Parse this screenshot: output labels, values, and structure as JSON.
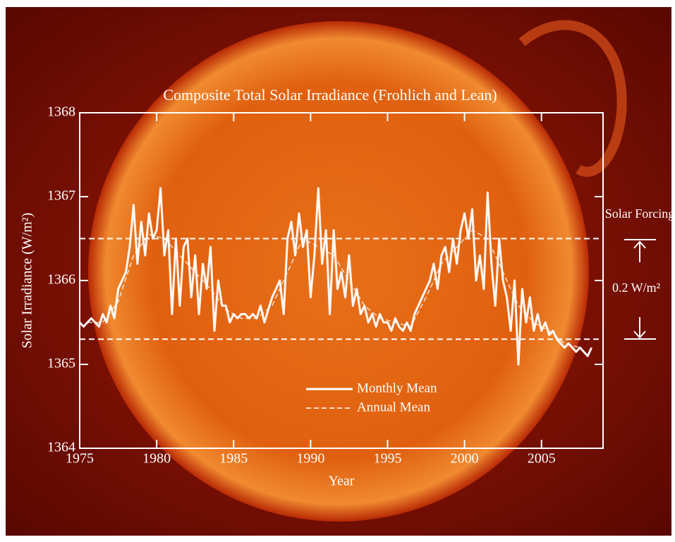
{
  "chart_data": {
    "type": "line",
    "title": "Composite Total Solar Irradiance (Frohlich and Lean)",
    "x_label": "Year",
    "y_label": "Solar Irradiance (W/m²)",
    "xlim": [
      1975,
      2009
    ],
    "xticks": [
      1975,
      1980,
      1985,
      1990,
      1995,
      2000,
      2005
    ],
    "ylim": [
      1364,
      1368
    ],
    "yticks": [
      1364,
      1365,
      1366,
      1367,
      1368
    ],
    "legend": "lower center",
    "reference_lines": [
      1366.5,
      1365.3
    ],
    "annotations": [
      "Solar Forcing",
      "0.2 W/m²"
    ],
    "series": [
      {
        "name": "Monthly Mean",
        "color": "#ffffff",
        "style": "solid",
        "x": [
          1975,
          1975.25,
          1975.5,
          1975.75,
          1976,
          1976.25,
          1976.5,
          1976.75,
          1977,
          1977.25,
          1977.5,
          1977.75,
          1978,
          1978.25,
          1978.5,
          1978.75,
          1979,
          1979.25,
          1979.5,
          1979.75,
          1980,
          1980.25,
          1980.5,
          1980.75,
          1981,
          1981.25,
          1981.5,
          1981.75,
          1982,
          1982.25,
          1982.5,
          1982.75,
          1983,
          1983.25,
          1983.5,
          1983.75,
          1984,
          1984.25,
          1984.5,
          1984.75,
          1985,
          1985.25,
          1985.5,
          1985.75,
          1986,
          1986.25,
          1986.5,
          1986.75,
          1987,
          1987.25,
          1987.5,
          1987.75,
          1988,
          1988.25,
          1988.5,
          1988.75,
          1989,
          1989.25,
          1989.5,
          1989.75,
          1990,
          1990.25,
          1990.5,
          1990.75,
          1991,
          1991.25,
          1991.5,
          1991.75,
          1992,
          1992.25,
          1992.5,
          1992.75,
          1993,
          1993.25,
          1993.5,
          1993.75,
          1994,
          1994.25,
          1994.5,
          1994.75,
          1995,
          1995.25,
          1995.5,
          1995.75,
          1996,
          1996.25,
          1996.5,
          1996.75,
          1997,
          1997.25,
          1997.5,
          1997.75,
          1998,
          1998.25,
          1998.5,
          1998.75,
          1999,
          1999.25,
          1999.5,
          1999.75,
          2000,
          2000.25,
          2000.5,
          2000.75,
          2001,
          2001.25,
          2001.5,
          2001.75,
          2002,
          2002.25,
          2002.5,
          2002.75,
          2003,
          2003.25,
          2003.5,
          2003.75,
          2004,
          2004.25,
          2004.5,
          2004.75,
          2005,
          2005.25,
          2005.5,
          2005.75,
          2006,
          2006.25,
          2006.5,
          2006.75,
          2007,
          2007.25,
          2007.5,
          2007.75,
          2008,
          2008.25
        ],
        "values": [
          1365.5,
          1365.45,
          1365.5,
          1365.55,
          1365.5,
          1365.45,
          1365.6,
          1365.5,
          1365.7,
          1365.55,
          1365.9,
          1366.0,
          1366.1,
          1366.4,
          1366.9,
          1366.2,
          1366.7,
          1366.3,
          1366.8,
          1366.5,
          1366.6,
          1367.1,
          1366.3,
          1366.6,
          1365.6,
          1366.5,
          1365.7,
          1366.4,
          1366.5,
          1365.8,
          1366.3,
          1365.6,
          1366.2,
          1365.9,
          1366.4,
          1365.4,
          1366.0,
          1365.7,
          1365.7,
          1365.5,
          1365.6,
          1365.55,
          1365.6,
          1365.6,
          1365.55,
          1365.6,
          1365.55,
          1365.7,
          1365.5,
          1365.65,
          1365.8,
          1365.9,
          1366.0,
          1365.6,
          1366.5,
          1366.7,
          1366.3,
          1366.8,
          1366.4,
          1366.6,
          1365.8,
          1366.3,
          1367.1,
          1366.2,
          1366.6,
          1365.6,
          1366.6,
          1365.9,
          1366.1,
          1365.8,
          1366.3,
          1365.7,
          1365.9,
          1365.6,
          1365.7,
          1365.5,
          1365.6,
          1365.45,
          1365.6,
          1365.5,
          1365.5,
          1365.4,
          1365.55,
          1365.45,
          1365.4,
          1365.5,
          1365.4,
          1365.6,
          1365.7,
          1365.8,
          1365.9,
          1366.0,
          1366.2,
          1365.9,
          1366.3,
          1366.4,
          1366.1,
          1366.5,
          1366.2,
          1366.6,
          1366.8,
          1366.5,
          1366.85,
          1366.0,
          1366.3,
          1365.9,
          1367.05,
          1366.2,
          1365.7,
          1366.5,
          1366.0,
          1365.8,
          1365.4,
          1366.0,
          1365.0,
          1365.9,
          1365.5,
          1365.8,
          1365.4,
          1365.6,
          1365.4,
          1365.5,
          1365.35,
          1365.4,
          1365.3,
          1365.25,
          1365.2,
          1365.25,
          1365.2,
          1365.15,
          1365.2,
          1365.15,
          1365.1,
          1365.2
        ]
      },
      {
        "name": "Annual Mean",
        "color": "#ffffff",
        "style": "dashed",
        "x": [
          1975.5,
          1976.5,
          1977.5,
          1978.5,
          1979.5,
          1980.5,
          1981.5,
          1982.5,
          1983.5,
          1984.5,
          1985.5,
          1986.5,
          1987.5,
          1988.5,
          1989.5,
          1990.5,
          1991.5,
          1992.5,
          1993.5,
          1994.5,
          1995.5,
          1996.5,
          1997.5,
          1998.5,
          1999.5,
          2000.5,
          2001.5,
          2002.5,
          2003.5,
          2004.5,
          2005.5,
          2006.5,
          2007.5
        ],
        "values": [
          1365.5,
          1365.5,
          1365.75,
          1366.3,
          1366.55,
          1366.5,
          1366.3,
          1366.1,
          1365.9,
          1365.65,
          1365.55,
          1365.55,
          1365.7,
          1366.1,
          1366.5,
          1366.4,
          1366.3,
          1366.0,
          1365.7,
          1365.55,
          1365.5,
          1365.45,
          1365.8,
          1366.2,
          1366.4,
          1366.6,
          1366.5,
          1366.1,
          1365.7,
          1365.5,
          1365.4,
          1365.25,
          1365.2
        ]
      }
    ]
  }
}
